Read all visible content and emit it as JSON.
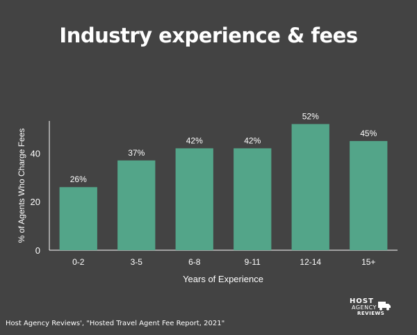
{
  "chart_data": {
    "type": "bar",
    "title": "Industry experience & fees",
    "xlabel": "Years of Experience",
    "ylabel": "% of Agents Who Charge Fees",
    "categories": [
      "0-2",
      "3-5",
      "6-8",
      "9-11",
      "12-14",
      "15+"
    ],
    "values": [
      26,
      37,
      42,
      42,
      52,
      45
    ],
    "data_labels": [
      "26%",
      "37%",
      "42%",
      "42%",
      "52%",
      "45%"
    ],
    "yticks": [
      0,
      20,
      40
    ],
    "ylim": [
      0,
      55
    ],
    "grid": false,
    "bar_color": "#53a589"
  },
  "source_note": "Host Agency Reviews', \"Hosted Travel Agent Fee Report, 2021\"",
  "logo": {
    "line1": "HOST",
    "line2": "AGENCY",
    "line3": "REVIEWS"
  },
  "colors": {
    "background": "#434343",
    "text": "#ffffff",
    "bar": "#53a589"
  }
}
